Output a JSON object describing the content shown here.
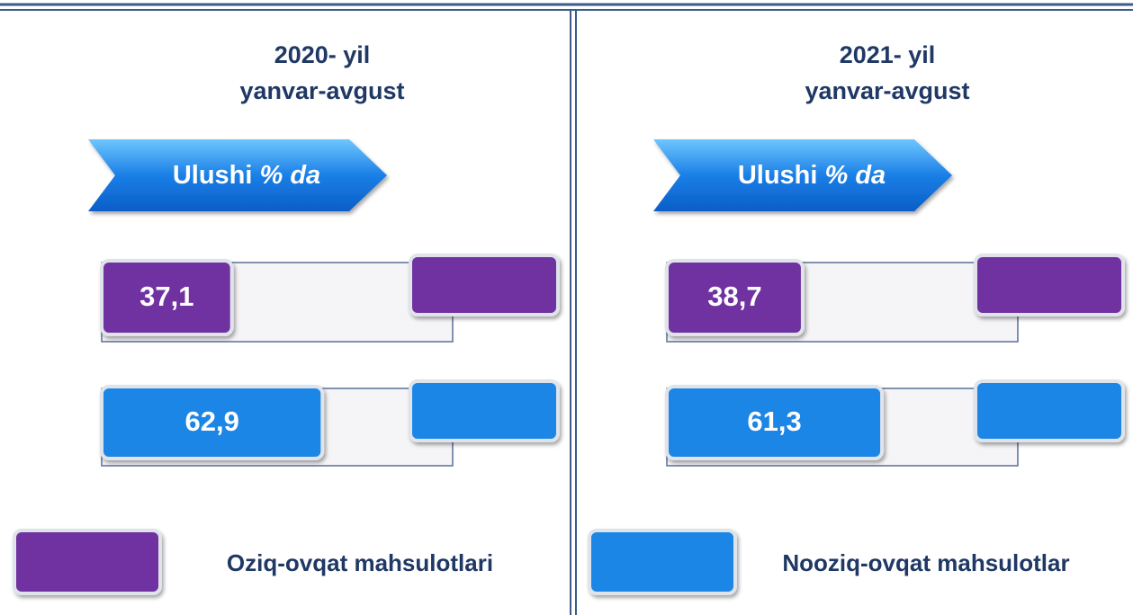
{
  "chart_data": [
    {
      "type": "bar",
      "title": "2020- yil",
      "subtitle": "yanvar-avgust",
      "badge": "Ulushi",
      "badge_unit": "% da",
      "values": [
        37.1,
        62.9
      ],
      "value_labels": [
        "37,1",
        "62,9"
      ],
      "colors": [
        "#7030a0",
        "#1a86e6"
      ],
      "xlim": [
        0,
        100
      ]
    },
    {
      "type": "bar",
      "title": "2021- yil",
      "subtitle": "yanvar-avgust",
      "badge": "Ulushi",
      "badge_unit": "% da",
      "values": [
        38.7,
        61.3
      ],
      "value_labels": [
        "38,7",
        "61,3"
      ],
      "colors": [
        "#7030a0",
        "#1a86e6"
      ],
      "xlim": [
        0,
        100
      ]
    }
  ],
  "legend": [
    {
      "name": "Oziq-ovqat mahsulotlari",
      "color": "#7030a0"
    },
    {
      "name": "Nooziq-ovqat mahsulotlar",
      "color": "#1a86e6"
    }
  ]
}
